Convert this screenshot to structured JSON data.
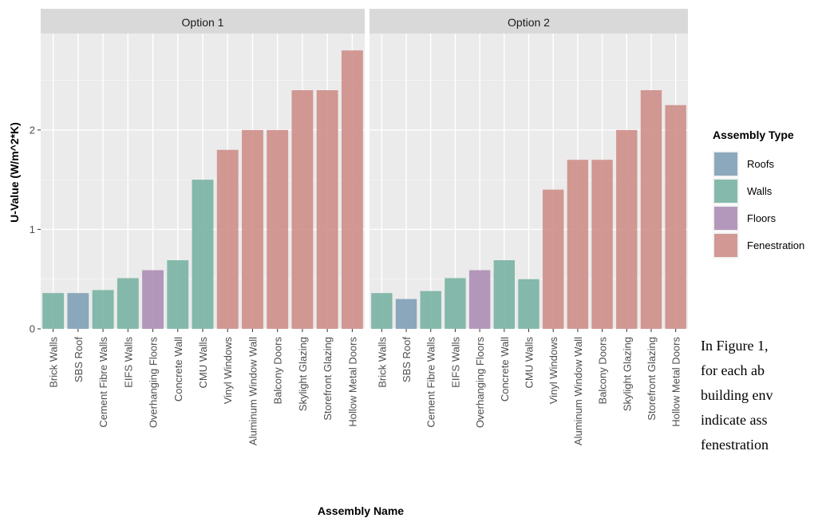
{
  "chart_data": {
    "type": "bar",
    "ylabel": "U-Value (W/m^2*K)",
    "xlabel": "Assembly Name",
    "ylim": [
      0,
      2.97
    ],
    "yticks": [
      0,
      1,
      2
    ],
    "grid": true,
    "legend": {
      "title": "Assembly Type",
      "placement": "right",
      "entries": [
        {
          "name": "Roofs",
          "color": "#7d9db5"
        },
        {
          "name": "Walls",
          "color": "#75b1a0"
        },
        {
          "name": "Floors",
          "color": "#ab8bb3"
        },
        {
          "name": "Fenestration",
          "color": "#cd8b85"
        }
      ]
    },
    "categories": [
      "Brick Walls",
      "SBS Roof",
      "Cement Fibre Walls",
      "EIFS Walls",
      "Overhanging Floors",
      "Concrete Wall",
      "CMU Walls",
      "Vinyl Windows",
      "Aluminum Window Wall",
      "Balcony Doors",
      "Skylight Glazing",
      "Storefront Glazing",
      "Hollow Metal Doors"
    ],
    "assembly_types": [
      "Walls",
      "Roofs",
      "Walls",
      "Walls",
      "Floors",
      "Walls",
      "Walls",
      "Fenestration",
      "Fenestration",
      "Fenestration",
      "Fenestration",
      "Fenestration",
      "Fenestration"
    ],
    "panels": [
      {
        "name": "Option 1",
        "values": [
          0.36,
          0.36,
          0.39,
          0.51,
          0.59,
          0.69,
          1.5,
          1.8,
          2.0,
          2.0,
          2.4,
          2.4,
          2.8
        ]
      },
      {
        "name": "Option 2",
        "values": [
          0.36,
          0.3,
          0.38,
          0.51,
          0.59,
          0.69,
          0.5,
          1.4,
          1.7,
          1.7,
          2.0,
          2.4,
          2.25
        ]
      }
    ]
  },
  "side_text": {
    "lines": [
      "In Figure 1,",
      "for  each  ab",
      "building env",
      "indicate  ass",
      "fenestration"
    ]
  }
}
